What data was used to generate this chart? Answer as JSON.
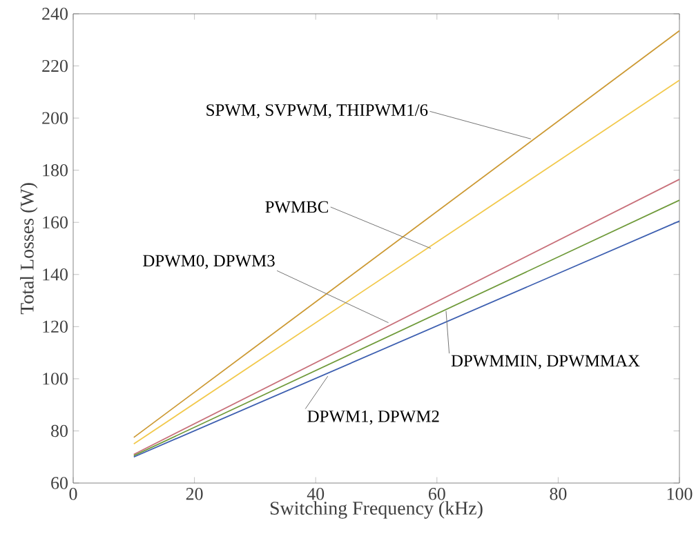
{
  "chart_data": {
    "type": "line",
    "xlabel": "Switching Frequency (kHz)",
    "ylabel": "Total Losses (W)",
    "xlim": [
      0,
      100
    ],
    "ylim": [
      60,
      240
    ],
    "xticks": [
      0,
      20,
      40,
      60,
      80,
      100
    ],
    "yticks": [
      60,
      80,
      100,
      120,
      140,
      160,
      180,
      200,
      220,
      240
    ],
    "x": [
      10,
      100
    ],
    "series": [
      {
        "color": "#cc9933",
        "values": [
          77.5,
          233.5
        ]
      },
      {
        "color": "#f2c94c",
        "values": [
          75,
          214.5
        ]
      },
      {
        "color": "#c8707a",
        "values": [
          71,
          176.5
        ]
      },
      {
        "color": "#6f9a3a",
        "values": [
          70.5,
          168.5
        ]
      },
      {
        "color": "#3d5fb0",
        "values": [
          70,
          160.5
        ]
      }
    ],
    "annotations": [
      {
        "text": "SPWM, SVPWM, THIPWM1/6",
        "x": 75.5,
        "y": 192
      },
      {
        "text": "PWMBC",
        "x": 59,
        "y": 150
      },
      {
        "text": "DPWM0, DPWM3",
        "x": 52,
        "y": 121.5
      },
      {
        "text": "DPWMMIN, DPWMMAX",
        "x": 61.5,
        "y": 126
      },
      {
        "text": "DPWM1, DPWM2",
        "x": 42,
        "y": 101
      }
    ],
    "grid": false,
    "marker": "none",
    "line_style": "solid"
  }
}
